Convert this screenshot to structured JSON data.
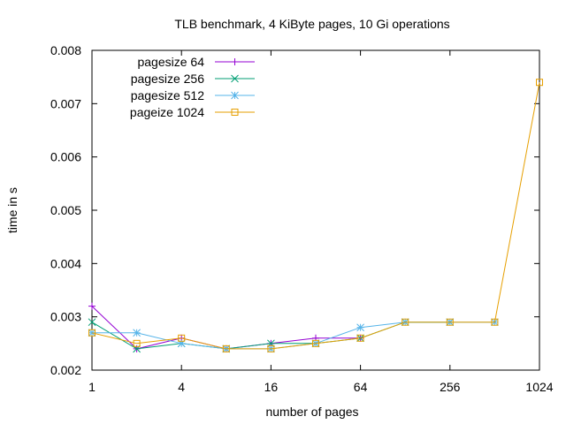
{
  "chart_data": {
    "type": "line",
    "title": "TLB benchmark, 4 KiByte pages, 10 Gi operations",
    "xlabel": "number of pages",
    "ylabel": "time in s",
    "xscale": "log2",
    "xlim": [
      1,
      1024
    ],
    "ylim": [
      0.002,
      0.008
    ],
    "xticks": [
      1,
      4,
      16,
      64,
      256,
      1024
    ],
    "xtick_labels": [
      "1",
      "4",
      "16",
      "64",
      "256",
      "1024"
    ],
    "yticks": [
      0.002,
      0.003,
      0.004,
      0.005,
      0.006,
      0.007,
      0.008
    ],
    "ytick_labels": [
      "0.002",
      "0.003",
      "0.004",
      "0.005",
      "0.006",
      "0.007",
      "0.008"
    ],
    "legend_position": "top-left",
    "grid": false,
    "series": [
      {
        "name": "pagesize 64",
        "color": "#9400d3",
        "marker": "plus",
        "x": [
          1,
          2,
          4,
          8,
          16,
          32,
          64
        ],
        "y": [
          0.0032,
          0.0024,
          0.0026,
          0.0024,
          0.0025,
          0.0026,
          0.0026
        ]
      },
      {
        "name": "pagesize 256",
        "color": "#009e73",
        "marker": "cross",
        "x": [
          1,
          2,
          4,
          8,
          16,
          32,
          64,
          128,
          256
        ],
        "y": [
          0.0029,
          0.0024,
          0.0025,
          0.0024,
          0.0025,
          0.0025,
          0.0026,
          0.0029,
          0.0029
        ]
      },
      {
        "name": "pagesize 512",
        "color": "#56b4e9",
        "marker": "star",
        "x": [
          1,
          2,
          4,
          8,
          16,
          32,
          64,
          128,
          256,
          512
        ],
        "y": [
          0.0027,
          0.0027,
          0.0025,
          0.0024,
          0.0024,
          0.0025,
          0.0028,
          0.0029,
          0.0029,
          0.0029
        ]
      },
      {
        "name": "pageize 1024",
        "color": "#e69f00",
        "marker": "square",
        "x": [
          1,
          2,
          4,
          8,
          16,
          32,
          64,
          128,
          256,
          512,
          1024
        ],
        "y": [
          0.0027,
          0.0025,
          0.0026,
          0.0024,
          0.0024,
          0.0025,
          0.0026,
          0.0029,
          0.0029,
          0.0029,
          0.0074
        ]
      }
    ]
  }
}
